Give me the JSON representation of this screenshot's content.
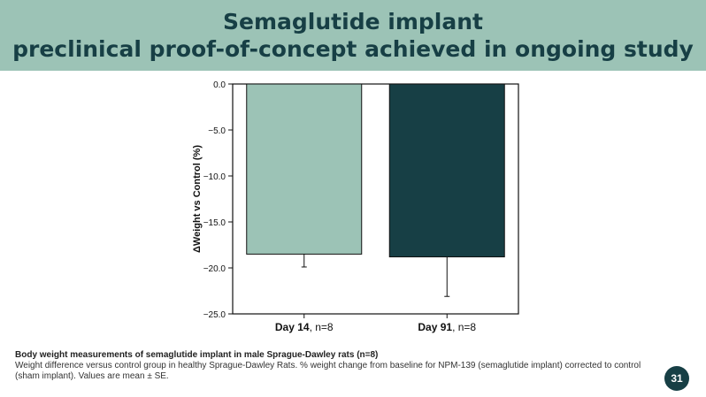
{
  "header": {
    "title_line1": "Semaglutide implant",
    "title_line2": "preclinical proof-of-concept achieved in ongoing study"
  },
  "chart_data": {
    "type": "bar",
    "categories": [
      {
        "bold": "Day 14",
        "rest": ", n=8"
      },
      {
        "bold": "Day 91",
        "rest": ", n=8"
      }
    ],
    "values": [
      -18.5,
      -18.8
    ],
    "errors": [
      1.4,
      4.3
    ],
    "bar_colors": [
      "#9cc3b6",
      "#173f45"
    ],
    "ylabel": "ΔWeight vs Control (%)",
    "ylim": [
      -25,
      0
    ],
    "yticks": [
      0,
      -5,
      -10,
      -15,
      -20,
      -25
    ],
    "ytick_labels": [
      "0.0",
      "−5.0",
      "−10.0",
      "−15.0",
      "−20.0",
      "−25.0"
    ],
    "grid": false
  },
  "caption": {
    "title": "Body weight measurements of semaglutide implant in male Sprague-Dawley rats (n=8)",
    "body": "Weight difference versus control group in healthy Sprague-Dawley Rats. % weight change from baseline for NPM-139 (semaglutide implant) corrected to control (sham implant). Values are mean ± SE."
  },
  "page_number": "31",
  "colors": {
    "header_bg": "#9cc3b6",
    "title_text": "#173f45",
    "badge_bg": "#173f45"
  }
}
